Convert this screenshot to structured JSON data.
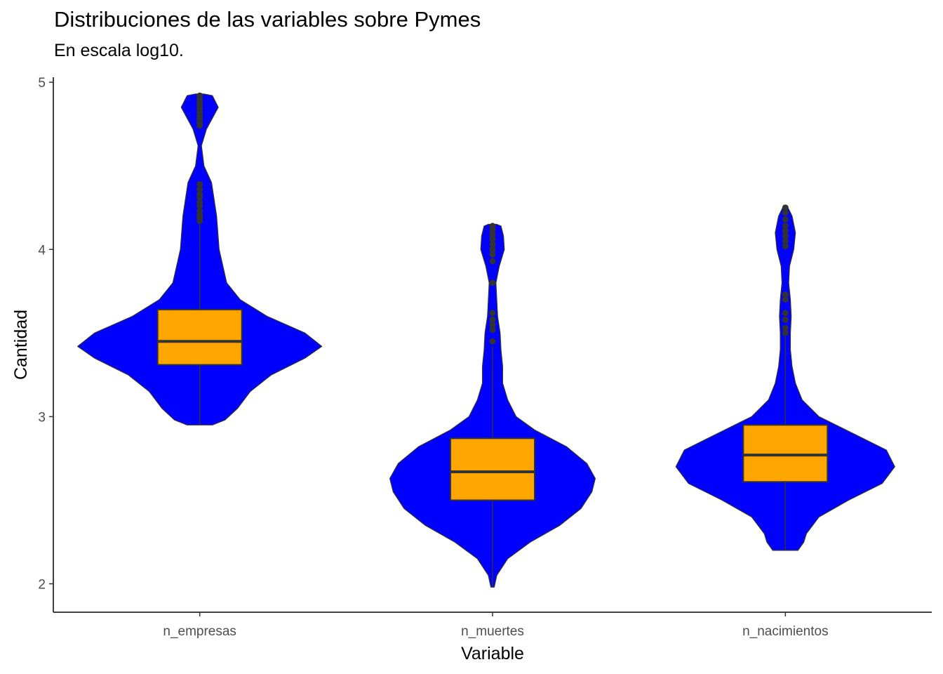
{
  "chart_data": {
    "type": "violin",
    "title": "Distribuciones de las variables sobre Pymes",
    "subtitle": "En escala log10.",
    "xlabel": "Variable",
    "ylabel": "Cantidad",
    "categories": [
      "n_empresas",
      "n_muertes",
      "n_nacimientos"
    ],
    "yticks": [
      2,
      3,
      4,
      5
    ],
    "ylim": [
      1.83,
      5.03
    ],
    "grid": false,
    "colors": {
      "violin_fill": "#0000ff",
      "box_fill": "#ffa500",
      "outline": "#333333"
    },
    "violins": [
      {
        "name": "n_empresas",
        "profile": [
          [
            2.95,
            0.15
          ],
          [
            2.98,
            0.3
          ],
          [
            3.05,
            0.45
          ],
          [
            3.15,
            0.6
          ],
          [
            3.25,
            0.85
          ],
          [
            3.35,
            1.25
          ],
          [
            3.42,
            1.45
          ],
          [
            3.5,
            1.25
          ],
          [
            3.6,
            0.8
          ],
          [
            3.7,
            0.48
          ],
          [
            3.8,
            0.32
          ],
          [
            4.0,
            0.23
          ],
          [
            4.2,
            0.2
          ],
          [
            4.4,
            0.14
          ],
          [
            4.5,
            0.05
          ],
          [
            4.62,
            0.02
          ],
          [
            4.72,
            0.08
          ],
          [
            4.85,
            0.22
          ],
          [
            4.92,
            0.15
          ],
          [
            4.93,
            0.05
          ]
        ],
        "box": {
          "q1": 3.31,
          "median": 3.45,
          "q3": 3.64
        },
        "whisker": [
          2.95,
          4.15
        ],
        "outliers": [
          4.17,
          4.19,
          4.21,
          4.23,
          4.26,
          4.28,
          4.31,
          4.33,
          4.36,
          4.39,
          4.74,
          4.76,
          4.78,
          4.8,
          4.82,
          4.84,
          4.86,
          4.88,
          4.9,
          4.92
        ]
      },
      {
        "name": "n_muertes",
        "profile": [
          [
            1.98,
            0.02
          ],
          [
            2.05,
            0.05
          ],
          [
            2.15,
            0.18
          ],
          [
            2.25,
            0.45
          ],
          [
            2.35,
            0.8
          ],
          [
            2.45,
            1.05
          ],
          [
            2.55,
            1.18
          ],
          [
            2.63,
            1.22
          ],
          [
            2.72,
            1.12
          ],
          [
            2.82,
            0.88
          ],
          [
            2.92,
            0.5
          ],
          [
            3.0,
            0.28
          ],
          [
            3.1,
            0.18
          ],
          [
            3.2,
            0.12
          ],
          [
            3.3,
            0.12
          ],
          [
            3.4,
            0.1
          ],
          [
            3.5,
            0.09
          ],
          [
            3.6,
            0.06
          ],
          [
            3.7,
            0.05
          ],
          [
            3.8,
            0.04
          ],
          [
            3.9,
            0.08
          ],
          [
            4.0,
            0.14
          ],
          [
            4.08,
            0.13
          ],
          [
            4.14,
            0.1
          ],
          [
            4.15,
            0.05
          ]
        ],
        "box": {
          "q1": 2.5,
          "median": 2.67,
          "q3": 2.87
        },
        "whisker": [
          1.98,
          3.42
        ],
        "outliers": [
          3.45,
          3.52,
          3.55,
          3.58,
          3.62,
          3.8,
          3.93,
          3.97,
          4.0,
          4.03,
          4.06,
          4.09,
          4.12,
          4.14
        ]
      },
      {
        "name": "n_nacimientos",
        "profile": [
          [
            2.2,
            0.15
          ],
          [
            2.25,
            0.22
          ],
          [
            2.3,
            0.25
          ],
          [
            2.4,
            0.4
          ],
          [
            2.5,
            0.75
          ],
          [
            2.6,
            1.15
          ],
          [
            2.7,
            1.3
          ],
          [
            2.8,
            1.2
          ],
          [
            2.9,
            0.8
          ],
          [
            3.0,
            0.4
          ],
          [
            3.1,
            0.2
          ],
          [
            3.2,
            0.12
          ],
          [
            3.3,
            0.08
          ],
          [
            3.4,
            0.06
          ],
          [
            3.5,
            0.06
          ],
          [
            3.6,
            0.07
          ],
          [
            3.7,
            0.06
          ],
          [
            3.8,
            0.04
          ],
          [
            3.9,
            0.05
          ],
          [
            4.0,
            0.1
          ],
          [
            4.1,
            0.12
          ],
          [
            4.2,
            0.08
          ],
          [
            4.25,
            0.03
          ]
        ],
        "box": {
          "q1": 2.61,
          "median": 2.77,
          "q3": 2.95
        },
        "whisker": [
          2.2,
          3.48
        ],
        "outliers": [
          3.5,
          3.53,
          3.58,
          3.62,
          3.7,
          3.73,
          4.02,
          4.05,
          4.08,
          4.11,
          4.14,
          4.18,
          4.22,
          4.25
        ]
      }
    ]
  }
}
